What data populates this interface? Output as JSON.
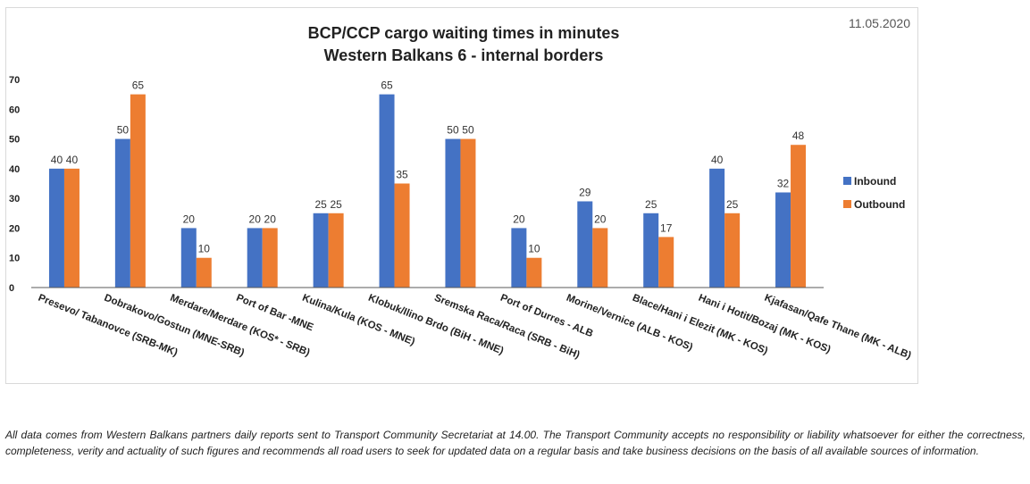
{
  "date": "11.05.2020",
  "footnote": "All data comes from Western Balkans partners daily reports sent to Transport Community Secretariat at 14.00. The Transport Community accepts no responsibility or liability whatsoever for either the correctness, completeness, verity and actuality of such figures and recommends all road users to seek for updated data on a regular basis and take business decisions on the basis of all available sources of information.",
  "colors": {
    "inbound": "#4472C4",
    "outbound": "#ED7D31",
    "grid": "#d9d9d9",
    "axis": "#595959"
  },
  "chart_data": {
    "type": "bar",
    "title": "BCP/CCP cargo waiting times in minutes",
    "subtitle": "Western Balkans 6 - internal borders",
    "xlabel": "",
    "ylabel": "",
    "ylim": [
      0,
      70
    ],
    "yticks": [
      0,
      10,
      20,
      30,
      40,
      50,
      60,
      70
    ],
    "grid": false,
    "legend_position": "right",
    "categories": [
      "Presevo/ Tabanovce (SRB-MK)",
      "Dobrakovo/Gostun (MNE-SRB)",
      "Merdare/Merdare (KOS* - SRB)",
      "Port of Bar -MNE",
      "Kulina/Kula (KOS - MNE)",
      "Klobuk/Ilino Brdo (BiH - MNE)",
      "Sremska Raca/Raca (SRB - BiH)",
      "Port of Durres - ALB",
      "Morine/Vernice (ALB - KOS)",
      "Blace/Hani i Elezit (MK - KOS)",
      "Hani i Hotit/Bozaj (MK - KOS)",
      "Kjafasan/Qafe Thane (MK - ALB)"
    ],
    "series": [
      {
        "name": "Inbound",
        "values": [
          40,
          50,
          20,
          20,
          25,
          65,
          50,
          20,
          29,
          25,
          40,
          32
        ]
      },
      {
        "name": "Outbound",
        "values": [
          40,
          65,
          10,
          20,
          25,
          35,
          50,
          10,
          20,
          17,
          25,
          48
        ]
      }
    ]
  }
}
